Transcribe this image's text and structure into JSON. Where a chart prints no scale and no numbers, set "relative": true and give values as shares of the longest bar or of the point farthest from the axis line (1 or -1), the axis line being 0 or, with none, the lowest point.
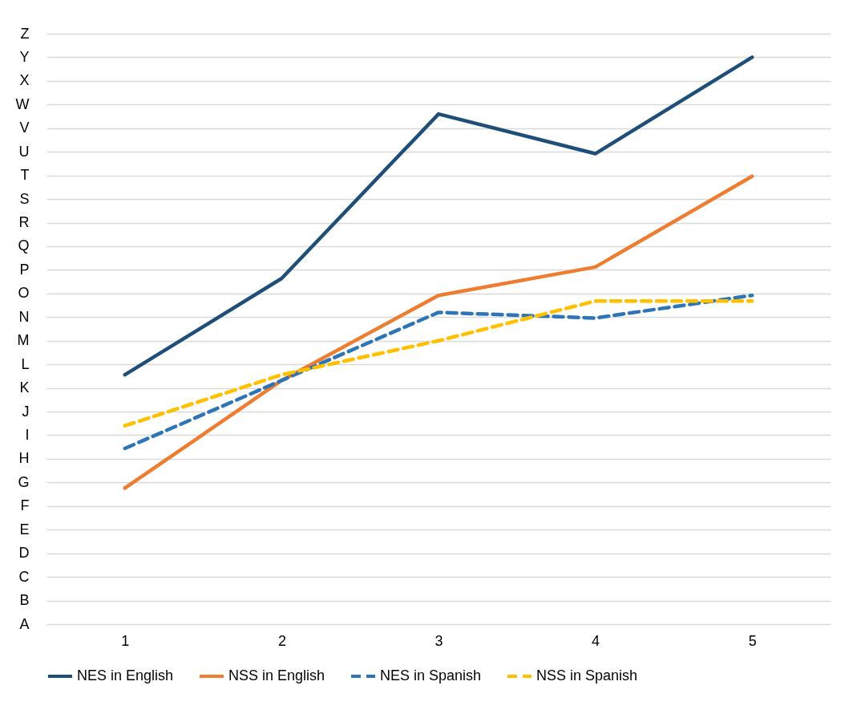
{
  "chart_data": {
    "type": "line",
    "relative": true,
    "categories": [
      "1",
      "2",
      "3",
      "4",
      "5"
    ],
    "series": [
      {
        "name": "NES in English",
        "color": "#1f4e79",
        "line_style": "solid",
        "values": [
          0.44,
          0.61,
          0.9,
          0.83,
          1
        ]
      },
      {
        "name": "NSS in English",
        "color": "#ed7d31",
        "line_style": "solid",
        "values": [
          0.24,
          0.43,
          0.58,
          0.63,
          0.79
        ]
      },
      {
        "name": "NES in Spanish",
        "color": "#2e75b6",
        "line_style": "dashed",
        "values": [
          0.31,
          0.43,
          0.55,
          0.54,
          0.58
        ]
      },
      {
        "name": "NSS in Spanish",
        "color": "#ffc000",
        "line_style": "dashed",
        "values": [
          0.35,
          0.44,
          0.5,
          0.57,
          0.57
        ]
      }
    ],
    "annotations": [
      "A",
      "B",
      "C",
      "D",
      "E",
      "F",
      "G",
      "H",
      "I",
      "J",
      "K",
      "L",
      "M",
      "N",
      "O",
      "P",
      "Q",
      "R",
      "S",
      "T",
      "U",
      "V",
      "W",
      "X",
      "Y",
      "Z"
    ],
    "grid": "y",
    "legend": "bottom"
  }
}
